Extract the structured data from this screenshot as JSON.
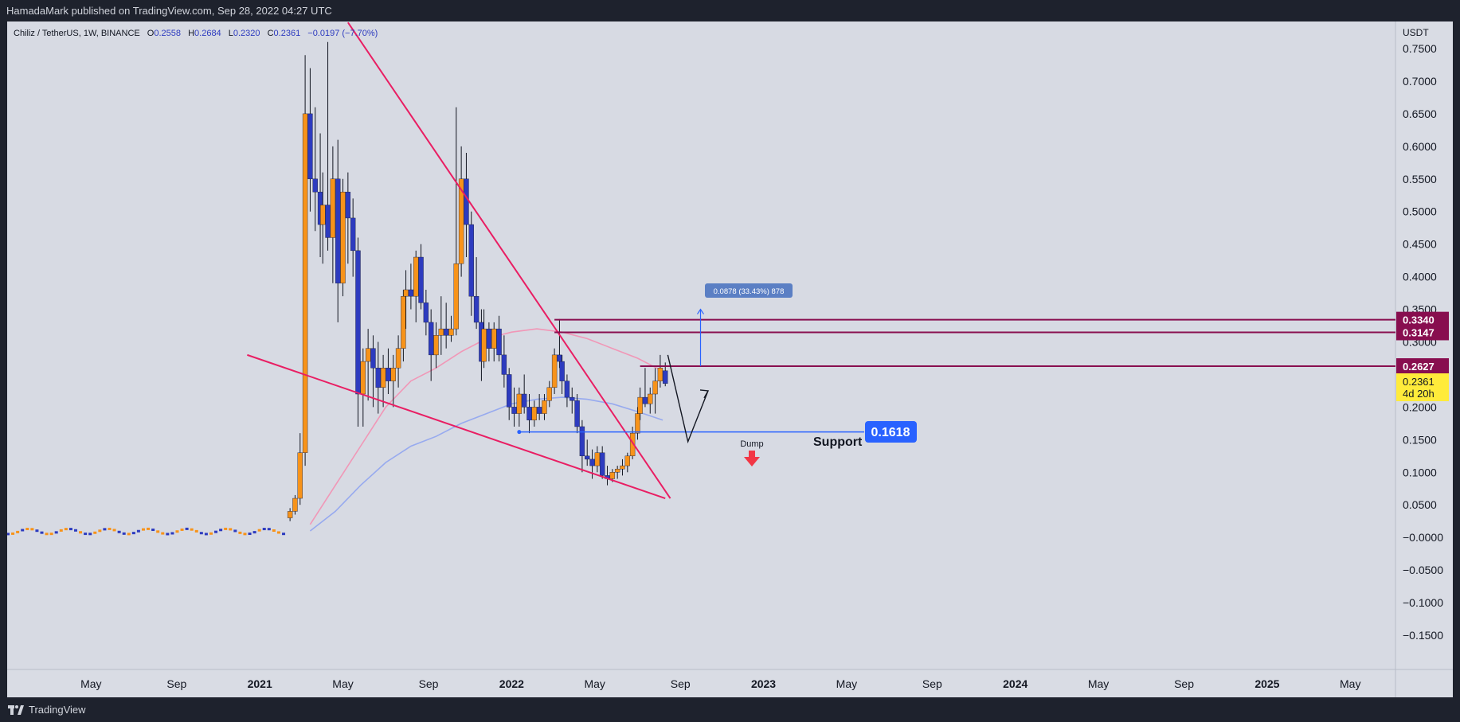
{
  "header": {
    "published": "HamadaMark published on TradingView.com, Sep 28, 2022 04:27 UTC"
  },
  "footer": {
    "brand": "TradingView",
    "logo_icon": "tradingview-logo-icon"
  },
  "colors": {
    "background": "#d7dae3",
    "bull": "#f7931a",
    "bear": "#2d3bbf",
    "trendline": "#e91e63",
    "resistance": "#880e4f",
    "support_line": "#2962ff",
    "ma_red": "#f48fb1",
    "ma_blue": "#90a4f0",
    "last_price_bg": "#ffeb3b"
  },
  "legend": {
    "symbol": "Chiliz / TetherUS, 1W, BINANCE",
    "o_label": "O",
    "o_value": "0.2558",
    "h_label": "H",
    "h_value": "0.2684",
    "l_label": "L",
    "l_value": "0.2320",
    "c_label": "C",
    "c_value": "0.2361",
    "change": "−0.0197 (−7.70%)"
  },
  "annotations": {
    "measure_label": "0.0878 (33.43%) 878",
    "support_text": "Support",
    "support_price": "0.1618",
    "dump_text": "Dump",
    "dump_icon": "down-arrow-icon"
  },
  "price_labels": [
    {
      "label": "0.3340",
      "value": 0.334,
      "style": "resistance"
    },
    {
      "label": "0.3147",
      "value": 0.3147,
      "style": "resistance"
    },
    {
      "label": "0.2627",
      "value": 0.2627,
      "style": "resistance"
    }
  ],
  "last_price": {
    "value": "0.2361",
    "countdown": "4d 20h"
  },
  "chart_data": {
    "type": "candlestick",
    "title": "Chiliz / TetherUS, 1W, BINANCE",
    "currency": "USDT",
    "ylim": [
      -0.19,
      0.79
    ],
    "y_ticks": [
      "0.7500",
      "0.7000",
      "0.6500",
      "0.6000",
      "0.5500",
      "0.5000",
      "0.4500",
      "0.4000",
      "0.3500",
      "0.3000",
      "0.2500",
      "0.2000",
      "0.1500",
      "0.1000",
      "0.0500",
      "−0.0000",
      "−0.0500",
      "−0.1000",
      "−0.1500"
    ],
    "y_tick_values": [
      0.75,
      0.7,
      0.65,
      0.6,
      0.55,
      0.5,
      0.45,
      0.4,
      0.35,
      0.3,
      0.25,
      0.2,
      0.15,
      0.1,
      0.05,
      0.0,
      -0.05,
      -0.1,
      -0.15
    ],
    "x_ticks": [
      {
        "label": "May",
        "t": 2020.33,
        "bold": false
      },
      {
        "label": "Sep",
        "t": 2020.67,
        "bold": false
      },
      {
        "label": "2021",
        "t": 2021.0,
        "bold": true
      },
      {
        "label": "May",
        "t": 2021.33,
        "bold": false
      },
      {
        "label": "Sep",
        "t": 2021.67,
        "bold": false
      },
      {
        "label": "2022",
        "t": 2022.0,
        "bold": true
      },
      {
        "label": "May",
        "t": 2022.33,
        "bold": false
      },
      {
        "label": "Sep",
        "t": 2022.67,
        "bold": false
      },
      {
        "label": "2023",
        "t": 2023.0,
        "bold": true
      },
      {
        "label": "May",
        "t": 2023.33,
        "bold": false
      },
      {
        "label": "Sep",
        "t": 2023.67,
        "bold": false
      },
      {
        "label": "2024",
        "t": 2024.0,
        "bold": true
      },
      {
        "label": "May",
        "t": 2024.33,
        "bold": false
      },
      {
        "label": "Sep",
        "t": 2024.67,
        "bold": false
      },
      {
        "label": "2025",
        "t": 2025.0,
        "bold": true
      },
      {
        "label": "May",
        "t": 2025.33,
        "bold": false
      }
    ],
    "candles": [
      {
        "t": 2021.12,
        "o": 0.03,
        "h": 0.045,
        "l": 0.025,
        "c": 0.04
      },
      {
        "t": 2021.14,
        "o": 0.04,
        "h": 0.065,
        "l": 0.035,
        "c": 0.06
      },
      {
        "t": 2021.16,
        "o": 0.06,
        "h": 0.16,
        "l": 0.05,
        "c": 0.13
      },
      {
        "t": 2021.18,
        "o": 0.13,
        "h": 0.74,
        "l": 0.11,
        "c": 0.65
      },
      {
        "t": 2021.2,
        "o": 0.65,
        "h": 0.72,
        "l": 0.5,
        "c": 0.55
      },
      {
        "t": 2021.22,
        "o": 0.55,
        "h": 0.66,
        "l": 0.47,
        "c": 0.53
      },
      {
        "t": 2021.24,
        "o": 0.53,
        "h": 0.62,
        "l": 0.43,
        "c": 0.48
      },
      {
        "t": 2021.25,
        "o": 0.48,
        "h": 0.56,
        "l": 0.42,
        "c": 0.51
      },
      {
        "t": 2021.27,
        "o": 0.51,
        "h": 0.76,
        "l": 0.44,
        "c": 0.46
      },
      {
        "t": 2021.29,
        "o": 0.46,
        "h": 0.6,
        "l": 0.39,
        "c": 0.55
      },
      {
        "t": 2021.31,
        "o": 0.55,
        "h": 0.61,
        "l": 0.33,
        "c": 0.39
      },
      {
        "t": 2021.33,
        "o": 0.39,
        "h": 0.55,
        "l": 0.37,
        "c": 0.53
      },
      {
        "t": 2021.35,
        "o": 0.53,
        "h": 0.56,
        "l": 0.42,
        "c": 0.49
      },
      {
        "t": 2021.37,
        "o": 0.49,
        "h": 0.52,
        "l": 0.4,
        "c": 0.44
      },
      {
        "t": 2021.39,
        "o": 0.44,
        "h": 0.46,
        "l": 0.17,
        "c": 0.22
      },
      {
        "t": 2021.41,
        "o": 0.22,
        "h": 0.29,
        "l": 0.17,
        "c": 0.27
      },
      {
        "t": 2021.43,
        "o": 0.27,
        "h": 0.32,
        "l": 0.21,
        "c": 0.29
      },
      {
        "t": 2021.45,
        "o": 0.29,
        "h": 0.31,
        "l": 0.2,
        "c": 0.26
      },
      {
        "t": 2021.47,
        "o": 0.26,
        "h": 0.3,
        "l": 0.19,
        "c": 0.23
      },
      {
        "t": 2021.49,
        "o": 0.23,
        "h": 0.28,
        "l": 0.2,
        "c": 0.26
      },
      {
        "t": 2021.51,
        "o": 0.26,
        "h": 0.29,
        "l": 0.22,
        "c": 0.24
      },
      {
        "t": 2021.53,
        "o": 0.24,
        "h": 0.28,
        "l": 0.2,
        "c": 0.26
      },
      {
        "t": 2021.55,
        "o": 0.26,
        "h": 0.31,
        "l": 0.23,
        "c": 0.29
      },
      {
        "t": 2021.57,
        "o": 0.29,
        "h": 0.38,
        "l": 0.27,
        "c": 0.37
      },
      {
        "t": 2021.58,
        "o": 0.37,
        "h": 0.41,
        "l": 0.32,
        "c": 0.38
      },
      {
        "t": 2021.6,
        "o": 0.38,
        "h": 0.42,
        "l": 0.35,
        "c": 0.37
      },
      {
        "t": 2021.62,
        "o": 0.37,
        "h": 0.44,
        "l": 0.33,
        "c": 0.43
      },
      {
        "t": 2021.64,
        "o": 0.43,
        "h": 0.45,
        "l": 0.35,
        "c": 0.36
      },
      {
        "t": 2021.66,
        "o": 0.36,
        "h": 0.38,
        "l": 0.31,
        "c": 0.33
      },
      {
        "t": 2021.68,
        "o": 0.33,
        "h": 0.35,
        "l": 0.24,
        "c": 0.28
      },
      {
        "t": 2021.7,
        "o": 0.28,
        "h": 0.33,
        "l": 0.26,
        "c": 0.31
      },
      {
        "t": 2021.72,
        "o": 0.31,
        "h": 0.37,
        "l": 0.28,
        "c": 0.32
      },
      {
        "t": 2021.74,
        "o": 0.32,
        "h": 0.36,
        "l": 0.29,
        "c": 0.31
      },
      {
        "t": 2021.76,
        "o": 0.31,
        "h": 0.34,
        "l": 0.3,
        "c": 0.32
      },
      {
        "t": 2021.78,
        "o": 0.32,
        "h": 0.66,
        "l": 0.31,
        "c": 0.42
      },
      {
        "t": 2021.8,
        "o": 0.42,
        "h": 0.6,
        "l": 0.4,
        "c": 0.55
      },
      {
        "t": 2021.82,
        "o": 0.55,
        "h": 0.59,
        "l": 0.43,
        "c": 0.48
      },
      {
        "t": 2021.84,
        "o": 0.48,
        "h": 0.5,
        "l": 0.34,
        "c": 0.37
      },
      {
        "t": 2021.86,
        "o": 0.37,
        "h": 0.43,
        "l": 0.32,
        "c": 0.33
      },
      {
        "t": 2021.88,
        "o": 0.33,
        "h": 0.35,
        "l": 0.24,
        "c": 0.27
      },
      {
        "t": 2021.89,
        "o": 0.27,
        "h": 0.35,
        "l": 0.26,
        "c": 0.32
      },
      {
        "t": 2021.91,
        "o": 0.32,
        "h": 0.33,
        "l": 0.27,
        "c": 0.29
      },
      {
        "t": 2021.93,
        "o": 0.29,
        "h": 0.33,
        "l": 0.27,
        "c": 0.32
      },
      {
        "t": 2021.95,
        "o": 0.32,
        "h": 0.34,
        "l": 0.27,
        "c": 0.28
      },
      {
        "t": 2021.97,
        "o": 0.28,
        "h": 0.31,
        "l": 0.23,
        "c": 0.25
      },
      {
        "t": 2021.99,
        "o": 0.25,
        "h": 0.26,
        "l": 0.18,
        "c": 0.2
      },
      {
        "t": 2022.01,
        "o": 0.2,
        "h": 0.23,
        "l": 0.17,
        "c": 0.19
      },
      {
        "t": 2022.03,
        "o": 0.19,
        "h": 0.23,
        "l": 0.17,
        "c": 0.22
      },
      {
        "t": 2022.05,
        "o": 0.22,
        "h": 0.25,
        "l": 0.19,
        "c": 0.2
      },
      {
        "t": 2022.07,
        "o": 0.2,
        "h": 0.22,
        "l": 0.16,
        "c": 0.18
      },
      {
        "t": 2022.09,
        "o": 0.18,
        "h": 0.21,
        "l": 0.17,
        "c": 0.2
      },
      {
        "t": 2022.11,
        "o": 0.2,
        "h": 0.22,
        "l": 0.18,
        "c": 0.19
      },
      {
        "t": 2022.13,
        "o": 0.19,
        "h": 0.22,
        "l": 0.18,
        "c": 0.21
      },
      {
        "t": 2022.15,
        "o": 0.21,
        "h": 0.24,
        "l": 0.2,
        "c": 0.23
      },
      {
        "t": 2022.17,
        "o": 0.23,
        "h": 0.29,
        "l": 0.22,
        "c": 0.28
      },
      {
        "t": 2022.19,
        "o": 0.28,
        "h": 0.335,
        "l": 0.26,
        "c": 0.27
      },
      {
        "t": 2022.2,
        "o": 0.27,
        "h": 0.28,
        "l": 0.22,
        "c": 0.24
      },
      {
        "t": 2022.22,
        "o": 0.24,
        "h": 0.25,
        "l": 0.2,
        "c": 0.215
      },
      {
        "t": 2022.24,
        "o": 0.215,
        "h": 0.23,
        "l": 0.19,
        "c": 0.21
      },
      {
        "t": 2022.26,
        "o": 0.21,
        "h": 0.22,
        "l": 0.16,
        "c": 0.17
      },
      {
        "t": 2022.28,
        "o": 0.17,
        "h": 0.18,
        "l": 0.1,
        "c": 0.125
      },
      {
        "t": 2022.3,
        "o": 0.125,
        "h": 0.15,
        "l": 0.11,
        "c": 0.12
      },
      {
        "t": 2022.32,
        "o": 0.12,
        "h": 0.135,
        "l": 0.09,
        "c": 0.11
      },
      {
        "t": 2022.34,
        "o": 0.11,
        "h": 0.14,
        "l": 0.1,
        "c": 0.13
      },
      {
        "t": 2022.36,
        "o": 0.13,
        "h": 0.14,
        "l": 0.09,
        "c": 0.095
      },
      {
        "t": 2022.38,
        "o": 0.095,
        "h": 0.11,
        "l": 0.08,
        "c": 0.09
      },
      {
        "t": 2022.4,
        "o": 0.09,
        "h": 0.105,
        "l": 0.085,
        "c": 0.1
      },
      {
        "t": 2022.42,
        "o": 0.1,
        "h": 0.11,
        "l": 0.09,
        "c": 0.105
      },
      {
        "t": 2022.44,
        "o": 0.105,
        "h": 0.12,
        "l": 0.095,
        "c": 0.11
      },
      {
        "t": 2022.46,
        "o": 0.11,
        "h": 0.13,
        "l": 0.1,
        "c": 0.125
      },
      {
        "t": 2022.48,
        "o": 0.125,
        "h": 0.17,
        "l": 0.12,
        "c": 0.16
      },
      {
        "t": 2022.5,
        "o": 0.16,
        "h": 0.2,
        "l": 0.15,
        "c": 0.19
      },
      {
        "t": 2022.51,
        "o": 0.19,
        "h": 0.23,
        "l": 0.18,
        "c": 0.215
      },
      {
        "t": 2022.53,
        "o": 0.215,
        "h": 0.26,
        "l": 0.2,
        "c": 0.205
      },
      {
        "t": 2022.55,
        "o": 0.205,
        "h": 0.23,
        "l": 0.19,
        "c": 0.22
      },
      {
        "t": 2022.57,
        "o": 0.22,
        "h": 0.26,
        "l": 0.19,
        "c": 0.24
      },
      {
        "t": 2022.59,
        "o": 0.24,
        "h": 0.28,
        "l": 0.23,
        "c": 0.26
      },
      {
        "t": 2022.61,
        "o": 0.2558,
        "h": 0.2684,
        "l": 0.232,
        "c": 0.2361
      }
    ],
    "ma_red": [
      {
        "t": 2021.2,
        "v": 0.02
      },
      {
        "t": 2021.3,
        "v": 0.08
      },
      {
        "t": 2021.4,
        "v": 0.14
      },
      {
        "t": 2021.5,
        "v": 0.2
      },
      {
        "t": 2021.6,
        "v": 0.24
      },
      {
        "t": 2021.7,
        "v": 0.26
      },
      {
        "t": 2021.8,
        "v": 0.285
      },
      {
        "t": 2021.9,
        "v": 0.305
      },
      {
        "t": 2022.0,
        "v": 0.315
      },
      {
        "t": 2022.1,
        "v": 0.32
      },
      {
        "t": 2022.2,
        "v": 0.315
      },
      {
        "t": 2022.3,
        "v": 0.305
      },
      {
        "t": 2022.4,
        "v": 0.29
      },
      {
        "t": 2022.5,
        "v": 0.275
      },
      {
        "t": 2022.6,
        "v": 0.255
      }
    ],
    "ma_blue": [
      {
        "t": 2021.2,
        "v": 0.01
      },
      {
        "t": 2021.3,
        "v": 0.04
      },
      {
        "t": 2021.4,
        "v": 0.08
      },
      {
        "t": 2021.5,
        "v": 0.115
      },
      {
        "t": 2021.6,
        "v": 0.14
      },
      {
        "t": 2021.7,
        "v": 0.155
      },
      {
        "t": 2021.8,
        "v": 0.175
      },
      {
        "t": 2021.9,
        "v": 0.19
      },
      {
        "t": 2022.0,
        "v": 0.205
      },
      {
        "t": 2022.1,
        "v": 0.212
      },
      {
        "t": 2022.2,
        "v": 0.215
      },
      {
        "t": 2022.3,
        "v": 0.212
      },
      {
        "t": 2022.4,
        "v": 0.205
      },
      {
        "t": 2022.5,
        "v": 0.193
      },
      {
        "t": 2022.6,
        "v": 0.18
      }
    ],
    "trendline_upper": [
      {
        "t": 2021.35,
        "v": 0.79
      },
      {
        "t": 2022.63,
        "v": 0.06
      }
    ],
    "trendline_lower": [
      {
        "t": 2020.95,
        "v": 0.28
      },
      {
        "t": 2022.61,
        "v": 0.06
      }
    ],
    "resistance_levels": [
      {
        "t_start": 2022.17,
        "t_end": 2025.6,
        "v": 0.334
      },
      {
        "t_start": 2022.17,
        "t_end": 2025.6,
        "v": 0.3147
      },
      {
        "t_start": 2022.51,
        "t_end": 2025.6,
        "v": 0.2627
      }
    ],
    "support_level": {
      "t_start": 2022.03,
      "t_end": 2023.4,
      "v": 0.1618
    },
    "projection_path": [
      {
        "t": 2022.62,
        "v": 0.28
      },
      {
        "t": 2022.7,
        "v": 0.147
      },
      {
        "t": 2022.78,
        "v": 0.225
      }
    ],
    "measure": {
      "t": 2022.75,
      "v_from": 0.2627,
      "v_to": 0.35
    },
    "dump_arrow": {
      "t": 2022.78,
      "v": 0.125
    }
  }
}
